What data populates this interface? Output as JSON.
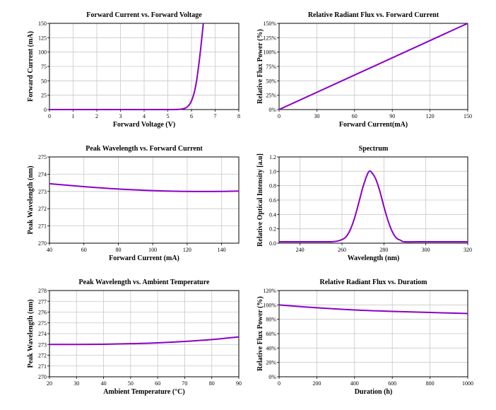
{
  "chart_data": [
    {
      "type": "line",
      "title": "Forward Current vs. Forward Voltage",
      "xlabel": "Forward Voltage (V)",
      "ylabel": "Forward Current (mA)",
      "xlim": [
        0,
        8
      ],
      "ylim": [
        0,
        150
      ],
      "xticks": [
        "0",
        "1",
        "2",
        "3",
        "4",
        "5",
        "6",
        "7",
        "8"
      ],
      "yticks": [
        "0",
        "25",
        "50",
        "75",
        "100",
        "125",
        "150"
      ],
      "grid": true,
      "series": [
        {
          "x": [
            0,
            1,
            2,
            3,
            4,
            5,
            5.5,
            5.7,
            5.8,
            5.9,
            6.0,
            6.1,
            6.2,
            6.3,
            6.4,
            6.5
          ],
          "y": [
            0,
            0,
            0,
            0,
            0,
            0,
            0.5,
            2,
            4,
            8,
            15,
            27,
            46,
            75,
            110,
            150
          ]
        }
      ]
    },
    {
      "type": "line",
      "title": "Relative Radiant Flux vs. Forward Current",
      "xlabel": "Forward Current(mA)",
      "ylabel": "Relative Flux Power (%)",
      "xlim": [
        0,
        150
      ],
      "ylim": [
        0,
        150
      ],
      "xticks": [
        "0",
        "30",
        "60",
        "90",
        "120",
        "150"
      ],
      "yticks": [
        "0%",
        "25%",
        "50%",
        "75%",
        "100%",
        "125%",
        "150%"
      ],
      "grid": true,
      "series": [
        {
          "x": [
            0,
            150
          ],
          "y": [
            0,
            150
          ]
        }
      ]
    },
    {
      "type": "line",
      "title": "Peak Wavelength vs. Forward Current",
      "xlabel": "Forward Current (mA)",
      "ylabel": "Peak Wavelength (nm)",
      "xlim": [
        40,
        150
      ],
      "ylim": [
        270,
        275
      ],
      "xticks": [
        "40",
        "60",
        "80",
        "100",
        "120",
        "140"
      ],
      "yticks": [
        "270",
        "271",
        "272",
        "273",
        "274",
        "275"
      ],
      "grid": true,
      "series": [
        {
          "x": [
            40,
            60,
            80,
            100,
            120,
            140,
            150
          ],
          "y": [
            273.45,
            273.28,
            273.14,
            273.05,
            273.0,
            273.0,
            273.02
          ]
        }
      ]
    },
    {
      "type": "line",
      "title": "Spectrum",
      "xlabel": "Wavelength (nm)",
      "ylabel": "Relative Optical Intensity [a.u]",
      "xlim": [
        230,
        320
      ],
      "ylim": [
        0,
        1.2
      ],
      "xticks": [
        "240",
        "260",
        "280",
        "300",
        "320"
      ],
      "yticks": [
        "0.0",
        "0.2",
        "0.4",
        "0.6",
        "0.8",
        "1.0",
        "1.2"
      ],
      "grid": true,
      "series": [
        {
          "x": [
            230,
            240,
            250,
            255,
            258,
            260,
            262,
            264,
            266,
            268,
            270,
            272,
            273,
            274,
            276,
            278,
            280,
            282,
            284,
            286,
            288,
            290,
            300,
            310,
            320
          ],
          "y": [
            0.02,
            0.02,
            0.02,
            0.02,
            0.03,
            0.05,
            0.09,
            0.19,
            0.35,
            0.56,
            0.78,
            0.95,
            1.0,
            0.99,
            0.9,
            0.73,
            0.51,
            0.31,
            0.16,
            0.07,
            0.04,
            0.02,
            0.02,
            0.02,
            0.02
          ]
        }
      ]
    },
    {
      "type": "line",
      "title": "Peak Wavelength vs. Ambient Temperature",
      "xlabel": "Ambient Temperature (°C)",
      "ylabel": "Peak Wavelength (nm)",
      "xlim": [
        20,
        90
      ],
      "ylim": [
        270,
        278
      ],
      "xticks": [
        "20",
        "30",
        "40",
        "50",
        "60",
        "70",
        "80",
        "90"
      ],
      "yticks": [
        "270",
        "271",
        "272",
        "273",
        "274",
        "275",
        "276",
        "277",
        "278"
      ],
      "grid": true,
      "series": [
        {
          "x": [
            20,
            30,
            40,
            50,
            60,
            70,
            80,
            90
          ],
          "y": [
            273.0,
            273.0,
            273.02,
            273.07,
            273.15,
            273.28,
            273.45,
            273.7
          ]
        }
      ]
    },
    {
      "type": "line",
      "title": "Relative Radiant Flux vs. Duratiom",
      "xlabel": "Duration (h)",
      "ylabel": "Relative Flux Power (%)",
      "xlim": [
        0,
        1000
      ],
      "ylim": [
        0,
        120
      ],
      "xticks": [
        "0",
        "200",
        "400",
        "600",
        "800",
        "1000"
      ],
      "yticks": [
        "0%",
        "20%",
        "40%",
        "60%",
        "80%",
        "100%",
        "120%"
      ],
      "grid": true,
      "series": [
        {
          "x": [
            0,
            200,
            400,
            600,
            800,
            1000
          ],
          "y": [
            100,
            96,
            93,
            91,
            89.5,
            88
          ]
        }
      ]
    }
  ],
  "colors": {
    "line": "#8b00c8",
    "grid": "#c8c8c8",
    "axis": "#000000"
  }
}
